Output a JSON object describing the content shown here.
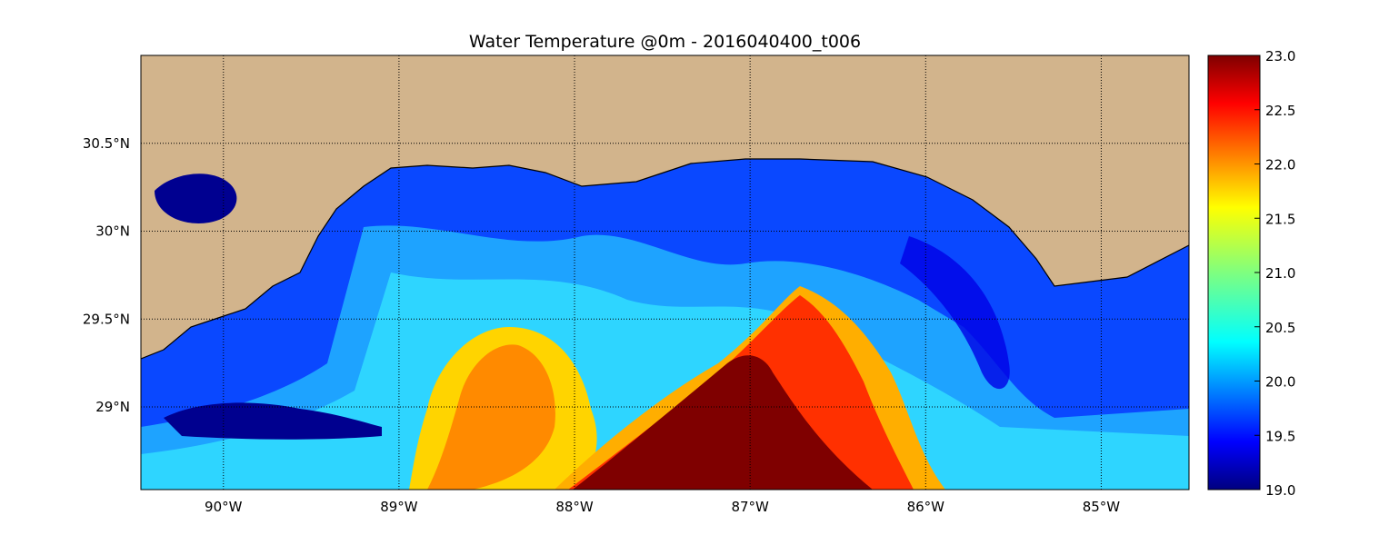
{
  "chart_data": {
    "type": "heatmap",
    "title": "Water Temperature @0m - 2016040400_t006",
    "x_ticks": [
      "90°W",
      "89°W",
      "88°W",
      "87°W",
      "86°W",
      "85°W"
    ],
    "x_values": [
      -90,
      -89,
      -88,
      -87,
      -86,
      -85
    ],
    "y_ticks": [
      "30.5°N",
      "30°N",
      "29.5°N",
      "29°N"
    ],
    "y_values": [
      30.5,
      30.0,
      29.5,
      29.0
    ],
    "xlim": [
      -90.47,
      -84.5
    ],
    "ylim": [
      28.53,
      31.0
    ],
    "grid": true,
    "colorbar": {
      "min": 19.0,
      "max": 23.0,
      "ticks": [
        "19.0",
        "19.5",
        "20.0",
        "20.5",
        "21.0",
        "21.5",
        "22.0",
        "22.5",
        "23.0"
      ],
      "tick_values": [
        19.0,
        19.5,
        20.0,
        20.5,
        21.0,
        21.5,
        22.0,
        22.5,
        23.0
      ],
      "colormap": "jet"
    },
    "colors": {
      "land": "#d2b48c",
      "stops": [
        "#00007f",
        "#0000ff",
        "#007fff",
        "#00ffff",
        "#7fff7f",
        "#ffff00",
        "#ff7f00",
        "#ff0000",
        "#7f0000"
      ]
    }
  }
}
